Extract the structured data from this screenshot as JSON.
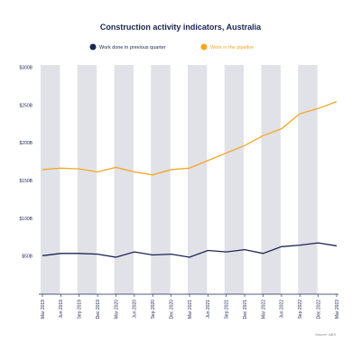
{
  "chart_data": {
    "type": "line",
    "title": "Construction activity indicators, Australia",
    "categories": [
      "Mar 2019",
      "Jun 2019",
      "Sep 2019",
      "Dec 2019",
      "Mar 2020",
      "Jun 2020",
      "Sep 2020",
      "Dec 2020",
      "Mar 2021",
      "Jun 2021",
      "Sep 2021",
      "Dec 2021",
      "Mar 2022",
      "Jun 2022",
      "Sep 2022",
      "Dec 2022",
      "Mar 2023"
    ],
    "series": [
      {
        "name": "Work done in previous quarter",
        "color": "#1b2452",
        "values": [
          51,
          54,
          54,
          53,
          49,
          56,
          52,
          53,
          49,
          58,
          56,
          59,
          54,
          63,
          65,
          68,
          64
        ]
      },
      {
        "name": "Work in the pipeline",
        "color": "#f5a623",
        "values": [
          165,
          167,
          166,
          162,
          168,
          162,
          158,
          165,
          167,
          177,
          187,
          197,
          210,
          219,
          239,
          246,
          255
        ]
      }
    ],
    "ylim": [
      0,
      300
    ],
    "yticks": [
      {
        "value": 50,
        "label": "$50B"
      },
      {
        "value": 100,
        "label": "$100B"
      },
      {
        "value": 150,
        "label": "$150B"
      },
      {
        "value": 200,
        "label": "$200B"
      },
      {
        "value": 250,
        "label": "$250B"
      },
      {
        "value": 300,
        "label": "$300B"
      }
    ],
    "source": "Source: ABS"
  }
}
